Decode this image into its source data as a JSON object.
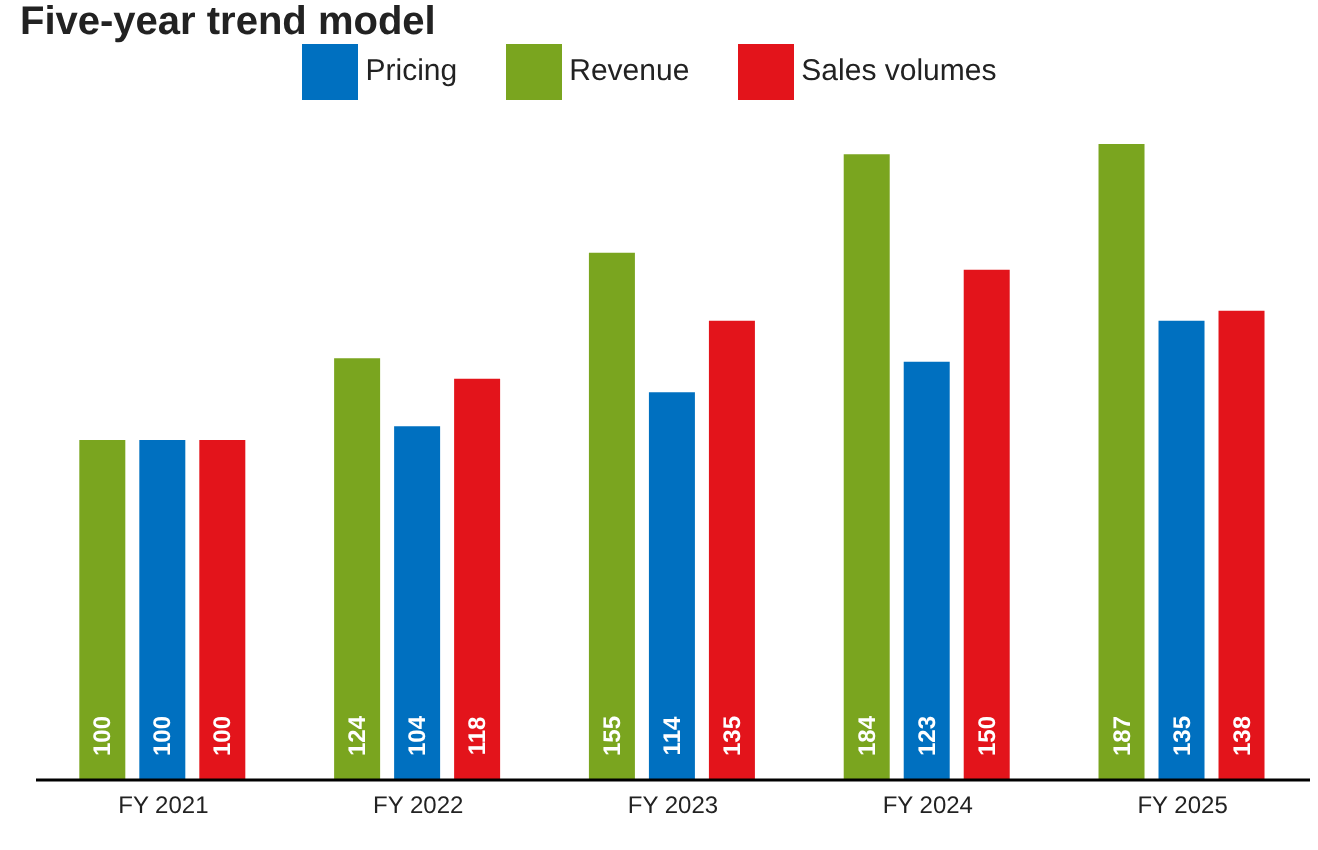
{
  "chart_data": {
    "type": "bar",
    "title": "Five-year trend model",
    "categories": [
      "FY 2021",
      "FY 2022",
      "FY 2023",
      "FY 2024",
      "FY 2025"
    ],
    "series": [
      {
        "name": "Revenue",
        "color": "#7aa51f",
        "values": [
          100,
          124,
          155,
          184,
          187
        ]
      },
      {
        "name": "Pricing",
        "color": "#0070c0",
        "values": [
          100,
          104,
          114,
          123,
          135
        ]
      },
      {
        "name": "Sales volumes",
        "color": "#e3141b",
        "values": [
          100,
          118,
          135,
          150,
          138
        ]
      }
    ],
    "data_labels": true,
    "legend": "top",
    "grid": false
  }
}
